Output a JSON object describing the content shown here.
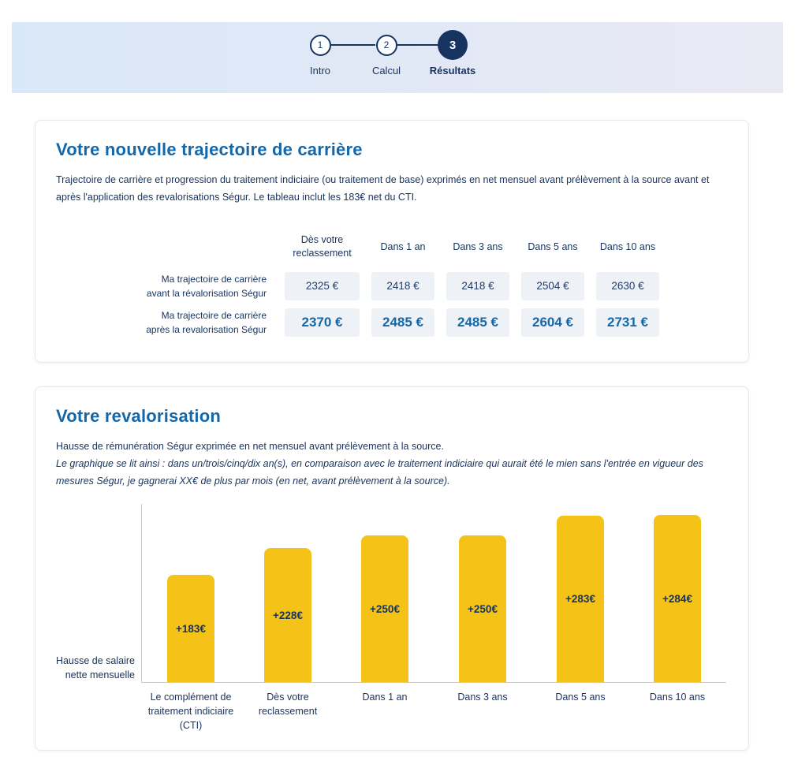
{
  "colors": {
    "navy": "#17335F",
    "blue": "#1467A8",
    "bar": "#F5C317",
    "cell_bg": "#EEF2F7",
    "axis": "#C9CDD2",
    "band_left": "#D9E8F8",
    "band_right": "#E9E9F3"
  },
  "stepper": {
    "steps": [
      {
        "number": "1",
        "label": "Intro",
        "active": false
      },
      {
        "number": "2",
        "label": "Calcul",
        "active": false
      },
      {
        "number": "3",
        "label": "Résultats",
        "active": true
      }
    ]
  },
  "career_card": {
    "title": "Votre nouvelle trajectoire de carrière",
    "description": "Trajectoire de carrière et progression du traitement indiciaire (ou traitement de base) exprimés en net mensuel avant prélèvement à la source avant et après l'application des revalorisations Ségur. Le tableau inclut les 183€ net du CTI.",
    "table": {
      "columns": [
        "Dès votre reclassement",
        "Dans 1 an",
        "Dans 3 ans",
        "Dans 5 ans",
        "Dans 10 ans"
      ],
      "rows": [
        {
          "label_lines": [
            "Ma trajectoire de carrière",
            "avant la révalorisation Ségur"
          ],
          "values": [
            "2325 €",
            "2418 €",
            "2418 €",
            "2504 €",
            "2630 €"
          ],
          "emphasis": false
        },
        {
          "label_lines": [
            "Ma trajectoire de carrière",
            "après la revalorisation Ségur"
          ],
          "values": [
            "2370 €",
            "2485 €",
            "2485 €",
            "2604 €",
            "2731 €"
          ],
          "emphasis": true
        }
      ]
    }
  },
  "revalorisation_card": {
    "title": "Votre revalorisation",
    "description": "Hausse de rémunération Ségur exprimée en net mensuel avant prélèvement à la source.",
    "description_italic": "Le graphique se lit ainsi : dans un/trois/cinq/dix an(s), en comparaison avec le traitement indiciaire qui aurait été le mien sans l'entrée en vigueur des mesures Ségur, je gagnerai XX€ de plus par mois (en net, avant prélèvement à la source).",
    "chart_data": {
      "type": "bar",
      "categories": [
        "Le complément de traitement indiciaire (CTI)",
        "Dès votre reclassement",
        "Dans 1 an",
        "Dans 3 ans",
        "Dans 5 ans",
        "Dans 10 ans"
      ],
      "values": [
        183,
        228,
        250,
        250,
        283,
        284
      ],
      "bar_labels": [
        "+183€",
        "+228€",
        "+250€",
        "+250€",
        "+283€",
        "+284€"
      ],
      "ylabel": "Hausse de salaire nette mensuelle",
      "xlabel": "",
      "ylim": [
        0,
        300
      ],
      "grid": false,
      "legend": false,
      "bar_color": "#F5C317"
    }
  }
}
